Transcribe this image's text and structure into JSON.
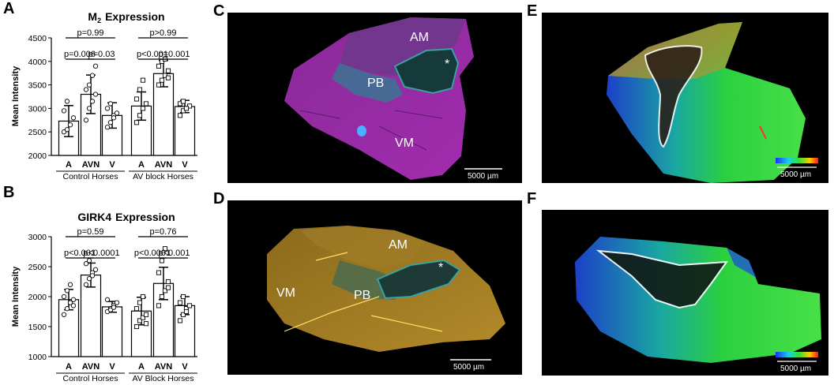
{
  "panels": {
    "A": "A",
    "B": "B",
    "C": "C",
    "D": "D",
    "E": "E",
    "F": "F"
  },
  "images": {
    "C": {
      "labels": {
        "AM": "AM",
        "PB": "PB",
        "VM": "VM",
        "star": "*"
      },
      "scale": "5000 µm"
    },
    "D": {
      "labels": {
        "AM": "AM",
        "PB": "PB",
        "VM": "VM",
        "star": "*"
      },
      "scale": "5000 µm"
    },
    "E": {
      "scale": "5000 µm"
    },
    "F": {
      "scale": "5000 µm"
    }
  },
  "chart_data": [
    {
      "type": "bar",
      "title": "M",
      "title_sub": "2",
      "title_rest": "Expression",
      "ylabel": "Mean Intensity",
      "ylim": [
        2000,
        4500
      ],
      "yticks": [
        "2000",
        "2500",
        "3000",
        "3500",
        "4000",
        "4500"
      ],
      "categories": [
        "A",
        "AVN",
        "V",
        "A",
        "AVN",
        "V"
      ],
      "groups": [
        "Control Horses",
        "AV block Horses"
      ],
      "values": [
        2730,
        3300,
        2850,
        3050,
        3740,
        3040
      ],
      "errors": [
        330,
        410,
        270,
        300,
        280,
        130
      ],
      "points": [
        [
          2500,
          2550,
          2650,
          2800,
          2950,
          3150
        ],
        [
          2750,
          3000,
          3150,
          3300,
          3400,
          3500,
          3700,
          3900
        ],
        [
          2600,
          2700,
          2850,
          2900,
          3000,
          3100,
          2800
        ],
        [
          2700,
          2850,
          3000,
          3100,
          3200,
          3400,
          3600
        ],
        [
          3500,
          3600,
          3700,
          3800,
          3900,
          4000,
          4050,
          3650
        ],
        [
          2850,
          2950,
          3000,
          3050,
          3100,
          3150,
          3000
        ]
      ],
      "comparisons": [
        {
          "label": "p=0.99",
          "from": 0,
          "to": 2,
          "level": 2
        },
        {
          "label": "p=0.006",
          "from": 0,
          "to": 1,
          "level": 1
        },
        {
          "label": "p=0.03",
          "from": 1,
          "to": 2,
          "level": 1
        },
        {
          "label": "p>0.99",
          "from": 3,
          "to": 5,
          "level": 2
        },
        {
          "label": "p<0.001",
          "from": 3,
          "to": 4,
          "level": 1
        },
        {
          "label": "p=0.001",
          "from": 4,
          "to": 5,
          "level": 1
        }
      ],
      "legend": "none",
      "grid": false
    },
    {
      "type": "bar",
      "title": "GIRK4",
      "title_sub": "",
      "title_rest": "Expression",
      "ylabel": "Mean Intensity",
      "ylim": [
        1000,
        3000
      ],
      "yticks": [
        "1000",
        "1500",
        "2000",
        "2500",
        "3000"
      ],
      "categories": [
        "A",
        "AVN",
        "V",
        "A",
        "AVN",
        "V"
      ],
      "groups": [
        "Control Horses",
        "AV Block Horses"
      ],
      "values": [
        1950,
        2360,
        1830,
        1760,
        2220,
        1850
      ],
      "errors": [
        170,
        200,
        90,
        230,
        270,
        150
      ],
      "points": [
        [
          1700,
          1800,
          1900,
          1950,
          2000,
          2100,
          2200,
          1850
        ],
        [
          2200,
          2300,
          2400,
          2450,
          2550,
          2600,
          2350
        ],
        [
          1750,
          1800,
          1850,
          1900,
          1950,
          1780,
          1820
        ],
        [
          1500,
          1600,
          1650,
          1700,
          1800,
          1900,
          2000,
          1550
        ],
        [
          1850,
          2000,
          2100,
          2250,
          2400,
          2600,
          2800,
          2150
        ],
        [
          1600,
          1700,
          1800,
          1850,
          1900,
          2000,
          1750
        ]
      ],
      "comparisons": [
        {
          "label": "p=0.59",
          "from": 0,
          "to": 2,
          "level": 2
        },
        {
          "label": "p<0.001",
          "from": 0,
          "to": 1,
          "level": 1
        },
        {
          "label": "p<0.0001",
          "from": 1,
          "to": 2,
          "level": 1
        },
        {
          "label": "p=0.76",
          "from": 3,
          "to": 5,
          "level": 2
        },
        {
          "label": "p<0.0001",
          "from": 3,
          "to": 4,
          "level": 1
        },
        {
          "label": "p<0.001",
          "from": 4,
          "to": 5,
          "level": 1
        }
      ],
      "legend": "none",
      "grid": false
    }
  ]
}
